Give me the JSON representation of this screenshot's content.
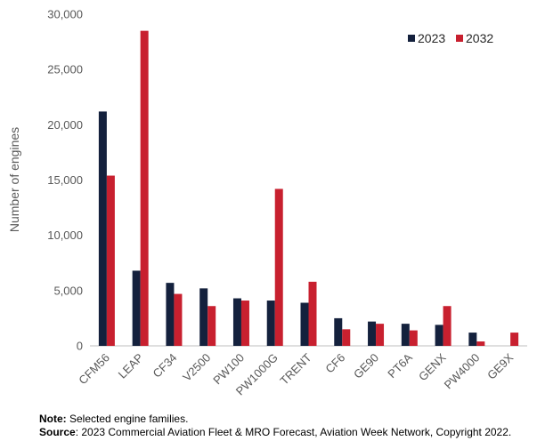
{
  "chart_data": {
    "type": "bar",
    "ylabel": "Number of engines",
    "xlabel": "",
    "ylim": [
      0,
      30000
    ],
    "yticks": [
      0,
      5000,
      10000,
      15000,
      20000,
      25000,
      30000
    ],
    "ytick_labels": [
      "0",
      "5,000",
      "10,000",
      "15,000",
      "20,000",
      "25,000",
      "30,000"
    ],
    "grid": false,
    "legend": "top-right",
    "categories": [
      "CFM56",
      "LEAP",
      "CF34",
      "V2500",
      "PW100",
      "PW1000G",
      "TRENT",
      "CF6",
      "GE90",
      "PT6A",
      "GENX",
      "PW4000",
      "GE9X"
    ],
    "series": [
      {
        "name": "2023",
        "color": "#14213d",
        "values": [
          21200,
          6800,
          5700,
          5200,
          4300,
          4100,
          3900,
          2500,
          2200,
          2000,
          1900,
          1200,
          0
        ]
      },
      {
        "name": "2032",
        "color": "#c8202f",
        "values": [
          15400,
          28500,
          4700,
          3600,
          4100,
          14200,
          5800,
          1500,
          2000,
          1400,
          3600,
          400,
          1200
        ]
      }
    ]
  },
  "footer": {
    "note_label": "Note:",
    "note_text": " Selected engine families.",
    "source_label": "Source",
    "source_text": ": 2023 Commercial Aviation Fleet & MRO Forecast, Aviation Week Network, Copyright 2022."
  }
}
